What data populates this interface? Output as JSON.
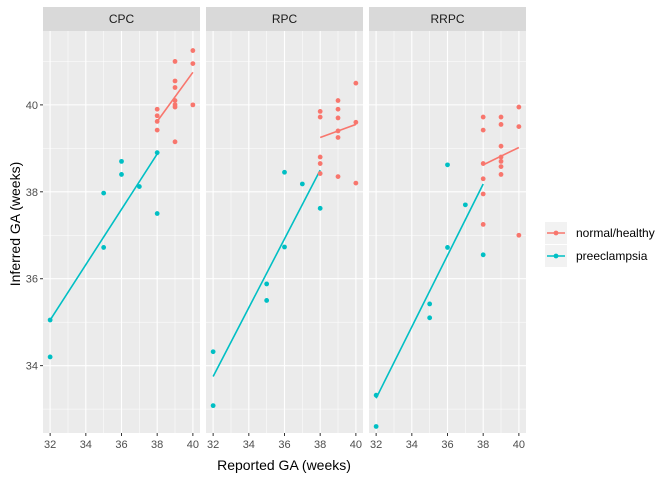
{
  "chart_data": {
    "type": "scatter",
    "xlabel": "Reported GA (weeks)",
    "ylabel": "Inferred GA (weeks)",
    "xlim": [
      31.6,
      40.4
    ],
    "ylim": [
      32.45,
      41.7
    ],
    "xticks": [
      32,
      34,
      36,
      38,
      40
    ],
    "yticks": [
      34,
      36,
      38,
      40
    ],
    "grid": true,
    "legend_position": "right",
    "legend_title": "",
    "series": [
      {
        "name": "normal/healthy",
        "color": "#F8766D"
      },
      {
        "name": "preeclampsia",
        "color": "#00BFC4"
      }
    ],
    "panels": [
      {
        "label": "CPC",
        "points": {
          "normal/healthy": [
            [
              38,
              39.9
            ],
            [
              38,
              39.75
            ],
            [
              38,
              39.62
            ],
            [
              38,
              39.42
            ],
            [
              39,
              41.0
            ],
            [
              39,
              40.55
            ],
            [
              39,
              40.4
            ],
            [
              39,
              40.1
            ],
            [
              39,
              40.0
            ],
            [
              39,
              39.95
            ],
            [
              39,
              39.15
            ],
            [
              40,
              41.25
            ],
            [
              40,
              40.95
            ],
            [
              40,
              40.0
            ]
          ],
          "preeclampsia": [
            [
              32,
              35.05
            ],
            [
              32,
              34.2
            ],
            [
              35,
              37.97
            ],
            [
              35,
              36.72
            ],
            [
              36,
              38.7
            ],
            [
              36,
              38.4
            ],
            [
              37,
              38.12
            ],
            [
              38,
              38.9
            ],
            [
              38,
              37.5
            ]
          ]
        },
        "fits": {
          "normal/healthy": [
            [
              38,
              39.62
            ],
            [
              40,
              40.75
            ]
          ],
          "preeclampsia": [
            [
              32,
              35.05
            ],
            [
              38,
              38.87
            ]
          ]
        }
      },
      {
        "label": "RPC",
        "points": {
          "normal/healthy": [
            [
              38,
              39.85
            ],
            [
              38,
              39.72
            ],
            [
              38,
              38.8
            ],
            [
              38,
              38.65
            ],
            [
              38,
              38.42
            ],
            [
              39,
              40.1
            ],
            [
              39,
              39.9
            ],
            [
              39,
              39.7
            ],
            [
              39,
              39.4
            ],
            [
              39,
              39.25
            ],
            [
              39,
              38.35
            ],
            [
              40,
              40.5
            ],
            [
              40,
              39.6
            ],
            [
              40,
              38.2
            ]
          ],
          "preeclampsia": [
            [
              32,
              34.32
            ],
            [
              32,
              33.08
            ],
            [
              35,
              35.88
            ],
            [
              35,
              35.5
            ],
            [
              36,
              38.45
            ],
            [
              36,
              36.73
            ],
            [
              37,
              38.18
            ],
            [
              38,
              37.62
            ]
          ]
        },
        "fits": {
          "normal/healthy": [
            [
              38,
              39.25
            ],
            [
              40,
              39.55
            ]
          ],
          "preeclampsia": [
            [
              32,
              33.75
            ],
            [
              38,
              38.5
            ]
          ]
        }
      },
      {
        "label": "RRPC",
        "points": {
          "normal/healthy": [
            [
              38,
              39.72
            ],
            [
              38,
              39.42
            ],
            [
              38,
              38.65
            ],
            [
              38,
              38.3
            ],
            [
              38,
              37.95
            ],
            [
              38,
              37.25
            ],
            [
              39,
              39.72
            ],
            [
              39,
              39.55
            ],
            [
              39,
              39.05
            ],
            [
              39,
              38.8
            ],
            [
              39,
              38.7
            ],
            [
              39,
              38.58
            ],
            [
              39,
              38.4
            ],
            [
              40,
              39.95
            ],
            [
              40,
              39.5
            ],
            [
              40,
              37.0
            ]
          ],
          "preeclampsia": [
            [
              32,
              33.32
            ],
            [
              32,
              32.6
            ],
            [
              35,
              35.42
            ],
            [
              35,
              35.1
            ],
            [
              36,
              38.62
            ],
            [
              36,
              36.72
            ],
            [
              37,
              37.7
            ],
            [
              38,
              36.55
            ]
          ]
        },
        "fits": {
          "normal/healthy": [
            [
              38,
              38.62
            ],
            [
              40,
              39.02
            ]
          ],
          "preeclampsia": [
            [
              32,
              33.25
            ],
            [
              38,
              38.18
            ]
          ]
        }
      }
    ]
  }
}
